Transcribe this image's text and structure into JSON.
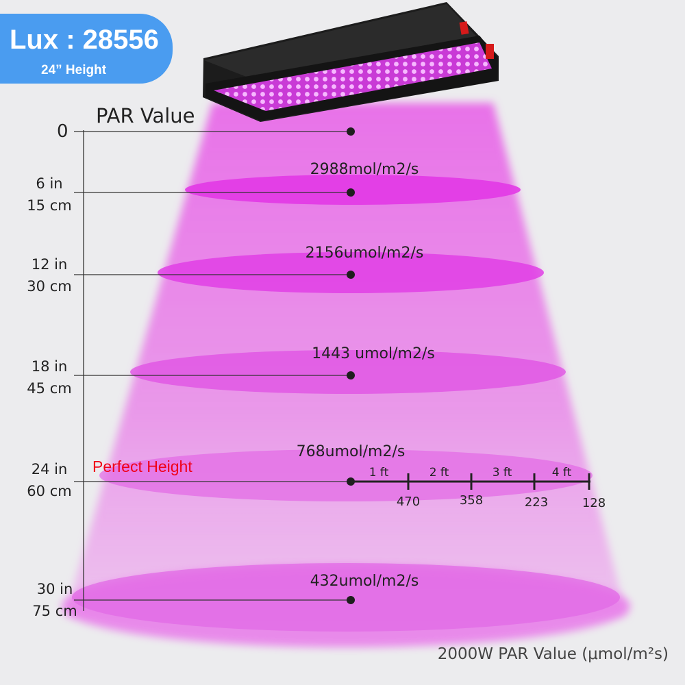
{
  "badge": {
    "lux_label": "Lux : 28556",
    "height_label": "24” Height"
  },
  "par_title": "PAR Value",
  "heights": [
    {
      "in": "0",
      "cm": ""
    },
    {
      "in": "6 in",
      "cm": "15 cm"
    },
    {
      "in": "12 in",
      "cm": "30 cm"
    },
    {
      "in": "18 in",
      "cm": "45 cm"
    },
    {
      "in": "24 in",
      "cm": "60 cm"
    },
    {
      "in": "30 in",
      "cm": "75 cm"
    }
  ],
  "par_values": [
    {
      "label": "2988mol/m2/s",
      "value": 2988
    },
    {
      "label": "2156umol/m2/s",
      "value": 2156
    },
    {
      "label": "1443 umol/m2/s",
      "value": 1443
    },
    {
      "label": "768umol/m2/s",
      "value": 768
    },
    {
      "label": "432umol/m2/s",
      "value": 432
    }
  ],
  "perfect_height": "Perfect Height",
  "distance_scale": {
    "segments": [
      "1 ft",
      "2 ft",
      "3 ft",
      "4 ft"
    ],
    "values": [
      "470",
      "358",
      "223",
      "128"
    ]
  },
  "footer": {
    "title": "2000W PAR Value",
    "unit": "(μmol/m²s)"
  },
  "colors": {
    "badge": "#4a9cf0",
    "light": "#e24de2",
    "perfect": "#f00018"
  }
}
